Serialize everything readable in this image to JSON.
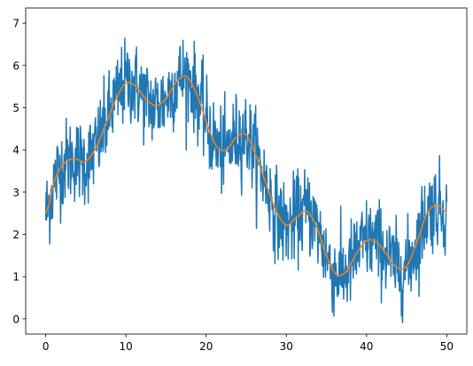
{
  "chart_data": {
    "type": "line",
    "title": "",
    "xlabel": "",
    "ylabel": "",
    "xlim": [
      -2.5,
      52.5
    ],
    "ylim": [
      -0.36,
      7.36
    ],
    "grid": false,
    "legend": "none",
    "x_ticks": [
      0,
      10,
      20,
      30,
      40,
      50
    ],
    "x_tick_labels": [
      "0",
      "10",
      "20",
      "30",
      "40",
      "50"
    ],
    "y_ticks": [
      0,
      1,
      2,
      3,
      4,
      5,
      6,
      7
    ],
    "y_tick_labels": [
      "0",
      "1",
      "2",
      "3",
      "4",
      "5",
      "6",
      "7"
    ],
    "x_range": [
      0,
      50
    ],
    "series": [
      {
        "color": "#1f77b4",
        "description": "noisy signal (~1000 points): smooth curve plus noise, std dev approx 0.5",
        "noise_std": 0.5,
        "x": [
          0,
          2.5,
          5,
          7.5,
          10,
          12.5,
          15,
          17.5,
          20,
          22.5,
          25,
          27.5,
          30,
          32.5,
          35,
          37.5,
          40,
          42.5,
          45,
          47.5,
          50
        ],
        "y": [
          2.5,
          3.72,
          3.73,
          4.62,
          5.58,
          5.2,
          5.22,
          5.74,
          4.68,
          4.0,
          4.35,
          3.18,
          2.22,
          2.55,
          1.49,
          1.13,
          1.85,
          1.53,
          1.25,
          2.48,
          2.52
        ]
      },
      {
        "color": "#ff7f0e",
        "x": [
          0,
          1.25,
          2.5,
          3.75,
          5,
          6.25,
          7.5,
          8.75,
          10,
          11.25,
          12.5,
          13.75,
          15,
          16.25,
          17.5,
          18.75,
          20,
          21.25,
          22.5,
          23.75,
          25,
          26.25,
          27.5,
          28.75,
          30,
          31.25,
          32.5,
          33.75,
          35,
          36.25,
          37.5,
          38.75,
          40,
          41.25,
          42.5,
          43.75,
          45,
          46.25,
          47.5,
          48.75,
          50
        ],
        "y": [
          2.5,
          3.35,
          3.72,
          3.78,
          3.73,
          4.05,
          4.62,
          5.2,
          5.58,
          5.5,
          5.2,
          5.05,
          5.22,
          5.6,
          5.74,
          5.35,
          4.68,
          4.1,
          4.0,
          4.3,
          4.35,
          3.85,
          3.18,
          2.55,
          2.22,
          2.4,
          2.55,
          2.2,
          1.49,
          1.05,
          1.13,
          1.55,
          1.85,
          1.82,
          1.53,
          1.22,
          1.25,
          1.8,
          2.48,
          2.7,
          2.52
        ]
      }
    ]
  }
}
